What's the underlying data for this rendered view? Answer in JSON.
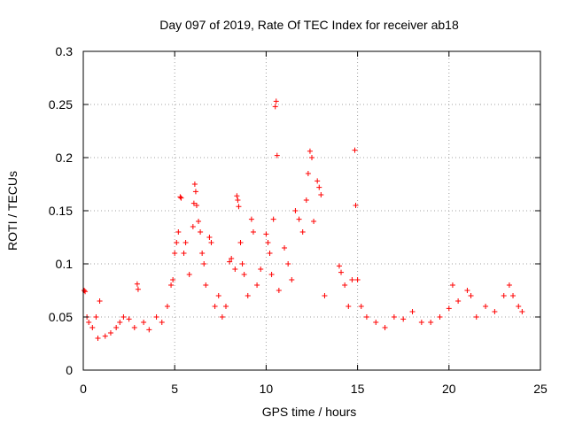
{
  "chart_data": {
    "type": "scatter",
    "title": "Day 097 of 2019, Rate Of TEC Index for receiver ab18",
    "xlabel": "GPS time / hours",
    "ylabel": "ROTI / TECUs",
    "xlim": [
      0,
      25
    ],
    "ylim": [
      0,
      0.3
    ],
    "xticks": [
      "0",
      "5",
      "10",
      "15",
      "20",
      "25"
    ],
    "yticks": [
      "0",
      "0.05",
      "0.1",
      "0.15",
      "0.2",
      "0.25",
      "0.3"
    ],
    "grid": true,
    "marker": "plus",
    "series": [
      {
        "color": "#ff0000",
        "points": [
          [
            0.05,
            0.075
          ],
          [
            0.1,
            0.074
          ],
          [
            0.2,
            0.05
          ],
          [
            0.3,
            0.045
          ],
          [
            0.5,
            0.04
          ],
          [
            0.7,
            0.05
          ],
          [
            0.8,
            0.03
          ],
          [
            0.9,
            0.065
          ],
          [
            1.2,
            0.032
          ],
          [
            1.5,
            0.035
          ],
          [
            1.8,
            0.04
          ],
          [
            2.0,
            0.045
          ],
          [
            2.2,
            0.05
          ],
          [
            2.5,
            0.048
          ],
          [
            2.8,
            0.04
          ],
          [
            2.95,
            0.081
          ],
          [
            3.0,
            0.076
          ],
          [
            3.3,
            0.045
          ],
          [
            3.6,
            0.038
          ],
          [
            4.0,
            0.05
          ],
          [
            4.3,
            0.045
          ],
          [
            4.6,
            0.06
          ],
          [
            4.8,
            0.08
          ],
          [
            4.9,
            0.085
          ],
          [
            5.0,
            0.11
          ],
          [
            5.1,
            0.12
          ],
          [
            5.2,
            0.13
          ],
          [
            5.3,
            0.163
          ],
          [
            5.35,
            0.162
          ],
          [
            5.5,
            0.11
          ],
          [
            5.6,
            0.12
          ],
          [
            5.8,
            0.09
          ],
          [
            6.0,
            0.135
          ],
          [
            6.05,
            0.157
          ],
          [
            6.1,
            0.175
          ],
          [
            6.15,
            0.168
          ],
          [
            6.2,
            0.155
          ],
          [
            6.3,
            0.14
          ],
          [
            6.4,
            0.13
          ],
          [
            6.5,
            0.11
          ],
          [
            6.6,
            0.1
          ],
          [
            6.7,
            0.08
          ],
          [
            6.9,
            0.125
          ],
          [
            7.0,
            0.12
          ],
          [
            7.2,
            0.06
          ],
          [
            7.4,
            0.07
          ],
          [
            7.6,
            0.05
          ],
          [
            7.8,
            0.06
          ],
          [
            8.0,
            0.102
          ],
          [
            8.1,
            0.105
          ],
          [
            8.3,
            0.095
          ],
          [
            8.4,
            0.164
          ],
          [
            8.45,
            0.16
          ],
          [
            8.5,
            0.154
          ],
          [
            8.6,
            0.12
          ],
          [
            8.7,
            0.1
          ],
          [
            8.8,
            0.09
          ],
          [
            9.0,
            0.07
          ],
          [
            9.2,
            0.142
          ],
          [
            9.3,
            0.13
          ],
          [
            9.5,
            0.08
          ],
          [
            9.7,
            0.095
          ],
          [
            10.0,
            0.128
          ],
          [
            10.1,
            0.12
          ],
          [
            10.2,
            0.11
          ],
          [
            10.3,
            0.09
          ],
          [
            10.4,
            0.142
          ],
          [
            10.5,
            0.248
          ],
          [
            10.55,
            0.253
          ],
          [
            10.6,
            0.202
          ],
          [
            10.7,
            0.075
          ],
          [
            11.0,
            0.115
          ],
          [
            11.2,
            0.1
          ],
          [
            11.4,
            0.085
          ],
          [
            11.6,
            0.15
          ],
          [
            11.8,
            0.142
          ],
          [
            12.0,
            0.13
          ],
          [
            12.2,
            0.16
          ],
          [
            12.3,
            0.185
          ],
          [
            12.4,
            0.206
          ],
          [
            12.5,
            0.2
          ],
          [
            12.6,
            0.14
          ],
          [
            12.8,
            0.178
          ],
          [
            12.9,
            0.172
          ],
          [
            13.0,
            0.165
          ],
          [
            13.2,
            0.07
          ],
          [
            14.0,
            0.098
          ],
          [
            14.1,
            0.092
          ],
          [
            14.3,
            0.08
          ],
          [
            14.5,
            0.06
          ],
          [
            14.7,
            0.085
          ],
          [
            14.85,
            0.207
          ],
          [
            14.9,
            0.155
          ],
          [
            15.0,
            0.085
          ],
          [
            15.2,
            0.06
          ],
          [
            15.5,
            0.05
          ],
          [
            16.0,
            0.045
          ],
          [
            16.5,
            0.04
          ],
          [
            17.0,
            0.05
          ],
          [
            17.5,
            0.048
          ],
          [
            18.0,
            0.055
          ],
          [
            18.5,
            0.045
          ],
          [
            19.0,
            0.045
          ],
          [
            19.5,
            0.05
          ],
          [
            20.0,
            0.058
          ],
          [
            20.2,
            0.08
          ],
          [
            20.5,
            0.065
          ],
          [
            21.0,
            0.075
          ],
          [
            21.2,
            0.07
          ],
          [
            21.5,
            0.05
          ],
          [
            22.0,
            0.06
          ],
          [
            22.5,
            0.055
          ],
          [
            23.0,
            0.07
          ],
          [
            23.3,
            0.08
          ],
          [
            23.5,
            0.07
          ],
          [
            23.8,
            0.06
          ],
          [
            24.0,
            0.055
          ]
        ]
      }
    ]
  }
}
